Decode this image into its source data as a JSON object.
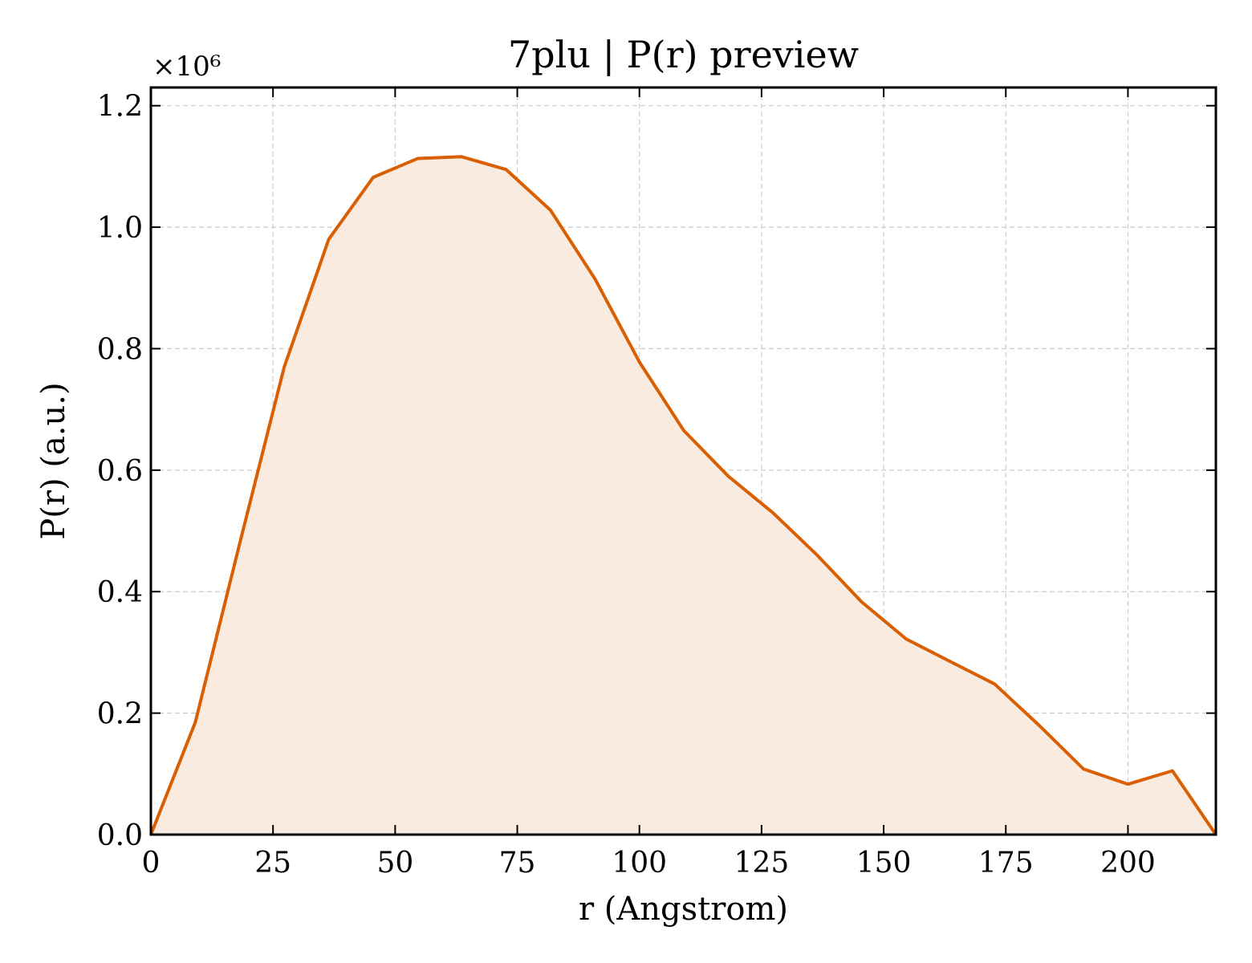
{
  "chart_data": {
    "type": "area",
    "title": "7plu | P(r) preview",
    "xlabel": "r (Angstrom)",
    "ylabel": "P(r) (a.u.)",
    "y_multiplier_label": "×10⁶",
    "xlim": [
      0,
      218
    ],
    "ylim": [
      0,
      1.23
    ],
    "xticks": [
      0,
      25,
      50,
      75,
      100,
      125,
      150,
      175,
      200
    ],
    "xtick_labels": [
      "0",
      "25",
      "50",
      "75",
      "100",
      "125",
      "150",
      "175",
      "200"
    ],
    "yticks": [
      0.0,
      0.2,
      0.4,
      0.6,
      0.8,
      1.0,
      1.2
    ],
    "ytick_labels": [
      "0.0",
      "0.2",
      "0.4",
      "0.6",
      "0.8",
      "1.0",
      "1.2"
    ],
    "grid": true,
    "line_color": "#d95f02",
    "fill_color": "#f9ebe0",
    "x": [
      0,
      9.1,
      18.2,
      27.3,
      36.4,
      45.5,
      54.6,
      63.6,
      72.7,
      81.8,
      90.9,
      100.0,
      109.1,
      118.2,
      127.3,
      136.4,
      145.5,
      154.6,
      163.6,
      172.7,
      181.8,
      190.9,
      200.0,
      209.1,
      218.0
    ],
    "y": [
      0.0,
      0.185,
      0.48,
      0.77,
      0.98,
      1.082,
      1.113,
      1.116,
      1.095,
      1.028,
      0.915,
      0.778,
      0.665,
      0.59,
      0.53,
      0.46,
      0.383,
      0.322,
      0.285,
      0.248,
      0.18,
      0.108,
      0.083,
      0.105,
      0.0
    ]
  }
}
